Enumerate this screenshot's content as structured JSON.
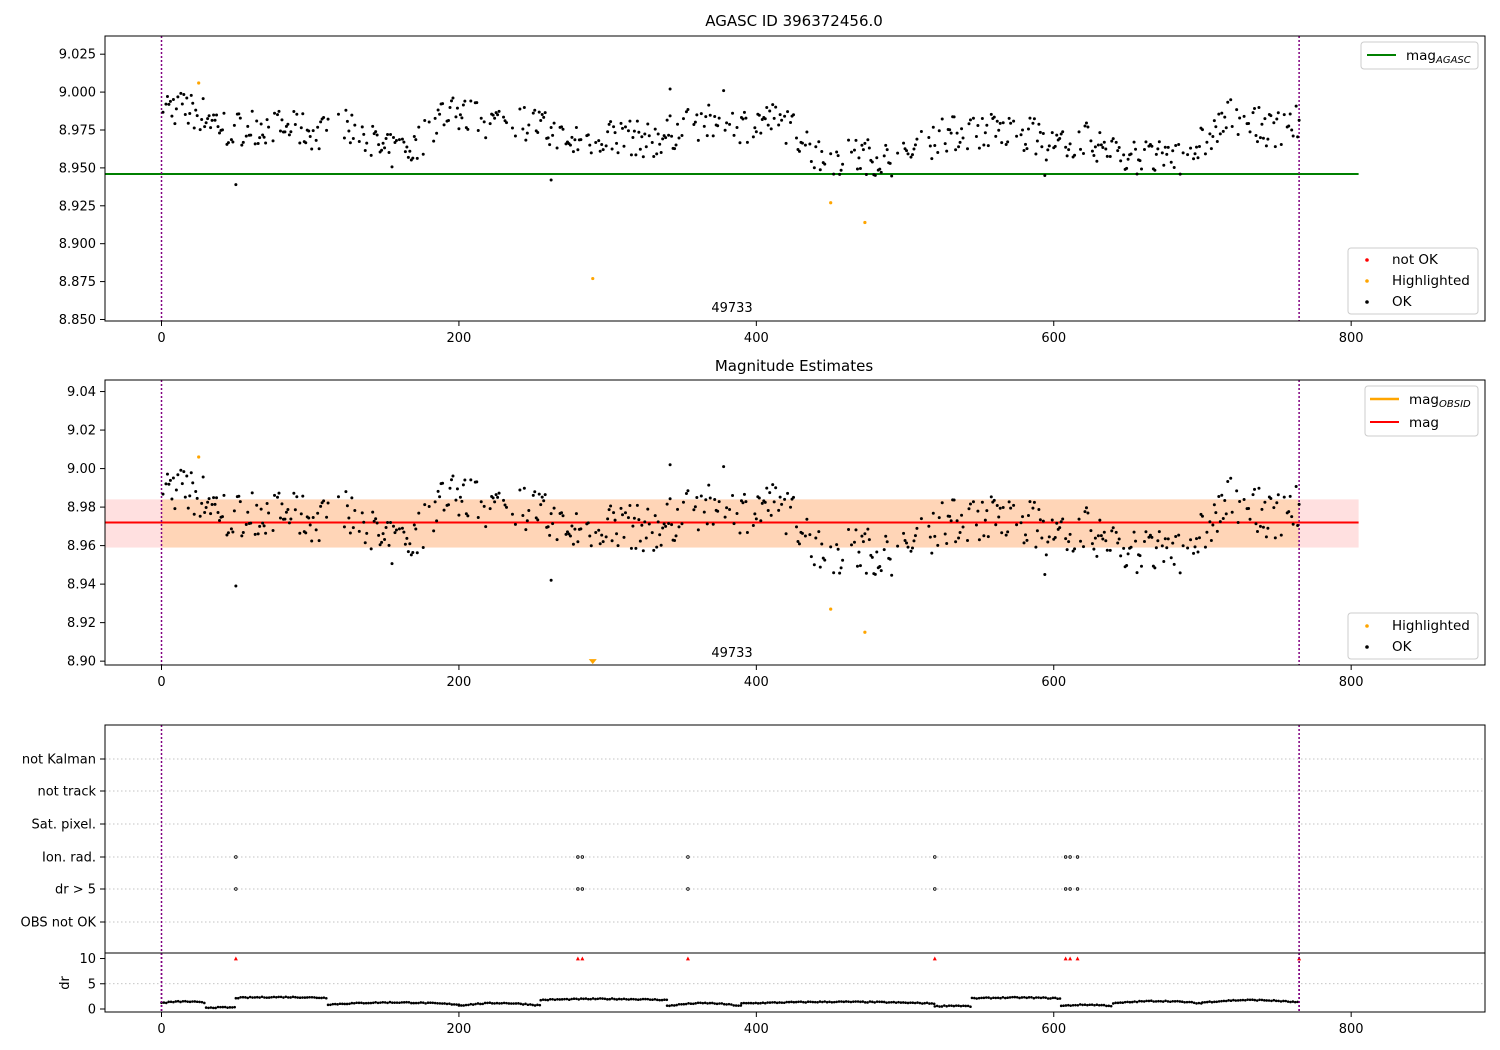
{
  "chart_data": [
    {
      "type": "scatter",
      "title": "AGASC ID 396372456.0",
      "xlim": [
        -38,
        890
      ],
      "ylim": [
        8.849,
        9.037
      ],
      "xticks": [
        "0",
        "200",
        "400",
        "600",
        "800"
      ],
      "yticks": [
        "9.025",
        "9.000",
        "8.975",
        "8.950",
        "8.925",
        "8.900",
        "8.875",
        "8.850"
      ],
      "obsid_label": "49733",
      "obs_bounds": [
        0,
        765
      ],
      "mag_agasc": 8.946,
      "mag_agasc_span": [
        -38,
        805
      ],
      "highlighted_points": [
        [
          25,
          9.006
        ],
        [
          290,
          8.877
        ],
        [
          450,
          8.927
        ],
        [
          473,
          8.914
        ]
      ],
      "colors": {
        "ok": "#000000",
        "highlighted": "#ffa500",
        "not_ok": "#ff0000",
        "mag_agasc": "#008000",
        "bounds": "#800080"
      },
      "legend_top": [
        {
          "label": "mag",
          "sub": "AGASC",
          "color": "#008000"
        }
      ],
      "legend_bottom": [
        {
          "label": "not OK",
          "color": "#ff0000"
        },
        {
          "label": "Highlighted",
          "color": "#ffa500"
        },
        {
          "label": "OK",
          "color": "#000000"
        }
      ],
      "legend_top_position": "top-right",
      "legend_bottom_position": "lower-right"
    },
    {
      "type": "scatter",
      "title": "Magnitude Estimates",
      "xlim": [
        -38,
        890
      ],
      "ylim": [
        8.898,
        9.046
      ],
      "xticks": [
        "0",
        "200",
        "400",
        "600",
        "800"
      ],
      "yticks": [
        "9.04",
        "9.02",
        "9.00",
        "8.98",
        "8.96",
        "8.94",
        "8.92",
        "8.90"
      ],
      "obsid_label": "49733",
      "obs_bounds": [
        0,
        765
      ],
      "mag": 8.972,
      "mag_band": [
        8.959,
        8.984
      ],
      "mag_obsid": 8.972,
      "mag_obsid_band": [
        8.959,
        8.984
      ],
      "band_span": [
        -38,
        805
      ],
      "highlighted_points": [
        [
          25,
          9.006
        ],
        [
          450,
          8.927
        ],
        [
          473,
          8.915
        ]
      ],
      "clipped_marker": [
        290,
        8.899
      ],
      "colors": {
        "ok": "#000000",
        "highlighted": "#ffa500",
        "mag": "#ff0000",
        "mag_obsid": "#ffa500",
        "bounds": "#800080"
      },
      "legend_top": [
        {
          "label": "mag",
          "sub": "OBSID",
          "color": "#ffa500"
        },
        {
          "label": "mag",
          "sub": "",
          "color": "#ff0000"
        }
      ],
      "legend_bottom": [
        {
          "label": "Highlighted",
          "color": "#ffa500"
        },
        {
          "label": "OK",
          "color": "#000000"
        }
      ],
      "legend_top_position": "top-right",
      "legend_bottom_position": "lower-right"
    },
    {
      "type": "scatter",
      "xlim": [
        -38,
        890
      ],
      "flag_labels": [
        "not Kalman",
        "not track",
        "Sat. pixel.",
        "Ion. rad.",
        "dr > 5",
        "OBS not OK"
      ],
      "ion_rad_x": [
        50,
        280,
        283,
        354,
        520,
        608,
        611,
        616
      ],
      "dr_gt5_x": [
        50,
        280,
        283,
        354,
        520,
        608,
        611,
        616
      ],
      "obs_bounds": [
        0,
        765
      ]
    },
    {
      "type": "scatter",
      "xlim": [
        -38,
        890
      ],
      "ylim": [
        0,
        10.5
      ],
      "ylabel": "dr",
      "yticks": [
        "10",
        "5",
        "0"
      ],
      "xticks": [
        "0",
        "200",
        "400",
        "600",
        "800"
      ],
      "red_markers_x": [
        50,
        280,
        283,
        354,
        520,
        608,
        611,
        616,
        765
      ],
      "colors": {
        "points": "#000000",
        "markers": "#ff0000"
      }
    }
  ]
}
